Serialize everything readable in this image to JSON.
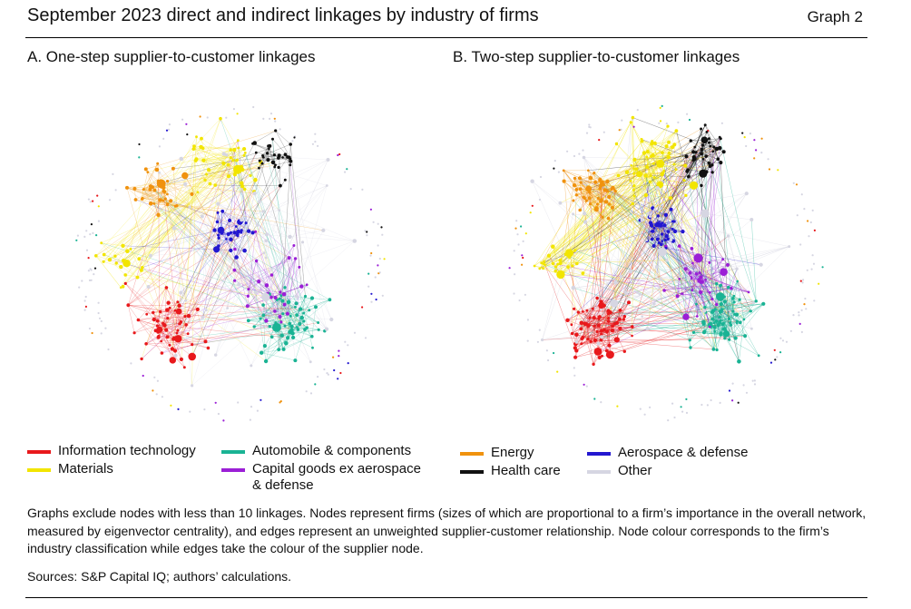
{
  "header": {
    "title": "September 2023 direct and indirect linkages by industry of firms",
    "graph_number": "Graph 2"
  },
  "panels": [
    {
      "id": "a",
      "title": "A. One-step supplier-to-customer linkages",
      "density": 0.5
    },
    {
      "id": "b",
      "title": "B. Two-step supplier-to-customer linkages",
      "density": 1.0
    }
  ],
  "legend": [
    {
      "label": "Information technology",
      "color": "#e8191c"
    },
    {
      "label": "Materials",
      "color": "#f2e500"
    },
    {
      "label": "Automobile & components",
      "color": "#1ab394"
    },
    {
      "label": "Capital goods ex aerospace & defense",
      "color": "#9b1fd6"
    },
    {
      "label": "Energy",
      "color": "#f0920e"
    },
    {
      "label": "Health care",
      "color": "#111111"
    },
    {
      "label": "Aerospace & defense",
      "color": "#2317d0"
    },
    {
      "label": "Other",
      "color": "#d6d6e2"
    }
  ],
  "notes": "Graphs exclude nodes with less than 10 linkages. Nodes represent firms (sizes of which are proportional to a firm’s importance in the overall network, measured by eigenvector centrality), and edges represent an unweighted supplier-customer relationship. Node colour corresponds to the firm’s industry classification while edges take the colour of the supplier node.",
  "sources": "Sources: S&P Capital IQ; authors’ calculations."
}
